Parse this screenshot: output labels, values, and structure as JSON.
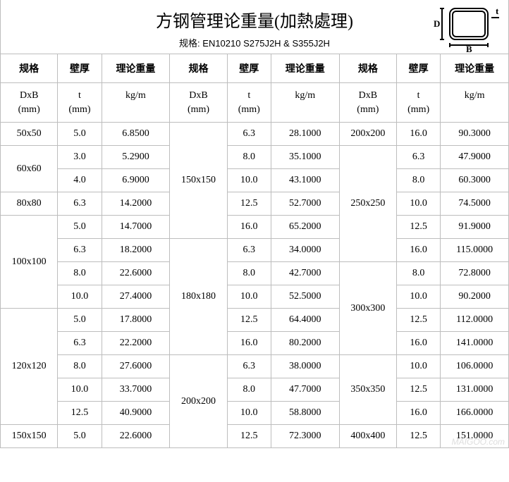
{
  "header": {
    "title": "方钢管理论重量(加熱處理)",
    "subtitle": "规格: EN10210 S275J2H & S355J2H",
    "diagram_labels": {
      "D": "D",
      "B": "B",
      "t": "t"
    }
  },
  "col_headers": {
    "spec": "规格",
    "thk": "壁厚",
    "wt": "理论重量"
  },
  "unit_headers": {
    "spec": "DxB\n(mm)",
    "thk": "t\n(mm)",
    "wt": "kg/m"
  },
  "columns": [
    {
      "groups": [
        {
          "spec": "50x50",
          "rows": [
            [
              "5.0",
              "6.8500"
            ]
          ]
        },
        {
          "spec": "60x60",
          "rows": [
            [
              "3.0",
              "5.2900"
            ],
            [
              "4.0",
              "6.9000"
            ]
          ]
        },
        {
          "spec": "80x80",
          "rows": [
            [
              "6.3",
              "14.2000"
            ]
          ]
        },
        {
          "spec": "100x100",
          "rows": [
            [
              "5.0",
              "14.7000"
            ],
            [
              "6.3",
              "18.2000"
            ],
            [
              "8.0",
              "22.6000"
            ],
            [
              "10.0",
              "27.4000"
            ]
          ]
        },
        {
          "spec": "120x120",
          "rows": [
            [
              "5.0",
              "17.8000"
            ],
            [
              "6.3",
              "22.2000"
            ],
            [
              "8.0",
              "27.6000"
            ],
            [
              "10.0",
              "33.7000"
            ],
            [
              "12.5",
              "40.9000"
            ]
          ]
        },
        {
          "spec": "150x150",
          "rows": [
            [
              "5.0",
              "22.6000"
            ]
          ]
        }
      ]
    },
    {
      "groups": [
        {
          "spec": "150x150",
          "rows": [
            [
              "6.3",
              "28.1000"
            ],
            [
              "8.0",
              "35.1000"
            ],
            [
              "10.0",
              "43.1000"
            ],
            [
              "12.5",
              "52.7000"
            ],
            [
              "16.0",
              "65.2000"
            ]
          ]
        },
        {
          "spec": "180x180",
          "rows": [
            [
              "6.3",
              "34.0000"
            ],
            [
              "8.0",
              "42.7000"
            ],
            [
              "10.0",
              "52.5000"
            ],
            [
              "12.5",
              "64.4000"
            ],
            [
              "16.0",
              "80.2000"
            ]
          ]
        },
        {
          "spec": "200x200",
          "rows": [
            [
              "6.3",
              "38.0000"
            ],
            [
              "8.0",
              "47.7000"
            ],
            [
              "10.0",
              "58.8000"
            ],
            [
              "12.5",
              "72.3000"
            ]
          ]
        }
      ]
    },
    {
      "groups": [
        {
          "spec": "200x200",
          "rows": [
            [
              "16.0",
              "90.3000"
            ]
          ]
        },
        {
          "spec": "250x250",
          "rows": [
            [
              "6.3",
              "47.9000"
            ],
            [
              "8.0",
              "60.3000"
            ],
            [
              "10.0",
              "74.5000"
            ],
            [
              "12.5",
              "91.9000"
            ],
            [
              "16.0",
              "115.0000"
            ]
          ]
        },
        {
          "spec": "300x300",
          "rows": [
            [
              "8.0",
              "72.8000"
            ],
            [
              "10.0",
              "90.2000"
            ],
            [
              "12.5",
              "112.0000"
            ],
            [
              "16.0",
              "141.0000"
            ]
          ]
        },
        {
          "spec": "350x350",
          "rows": [
            [
              "10.0",
              "106.0000"
            ],
            [
              "12.5",
              "131.0000"
            ],
            [
              "16.0",
              "166.0000"
            ]
          ]
        },
        {
          "spec": "400x400",
          "rows": [
            [
              "12.5",
              "151.0000"
            ]
          ]
        }
      ]
    }
  ],
  "watermark": "MAIGOO.com"
}
